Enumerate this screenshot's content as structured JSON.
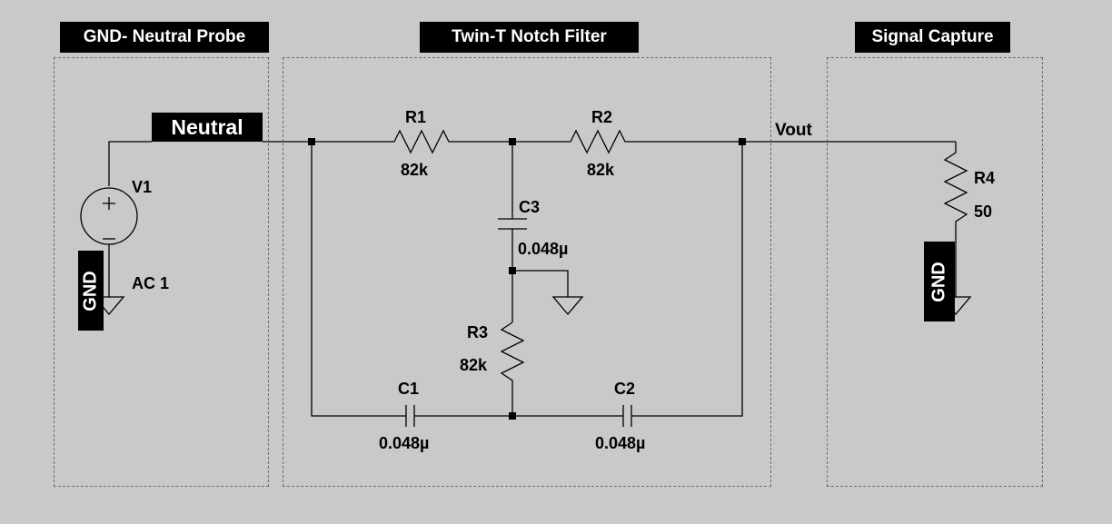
{
  "sections": {
    "probe": "GND- Neutral Probe",
    "filter": "Twin-T Notch Filter",
    "capture": "Signal Capture"
  },
  "nets": {
    "neutral": "Neutral",
    "vout": "Vout",
    "gnd_source": "GND",
    "gnd_load": "GND"
  },
  "components": {
    "v1": {
      "name": "V1",
      "value": "AC 1"
    },
    "r1": {
      "name": "R1",
      "value": "82k"
    },
    "r2": {
      "name": "R2",
      "value": "82k"
    },
    "r3": {
      "name": "R3",
      "value": "82k"
    },
    "r4": {
      "name": "R4",
      "value": "50"
    },
    "c1": {
      "name": "C1",
      "value": "0.048µ"
    },
    "c2": {
      "name": "C2",
      "value": "0.048µ"
    },
    "c3": {
      "name": "C3",
      "value": "0.048µ"
    }
  },
  "colors": {
    "background": "#c9c9c9",
    "wire": "#000000",
    "box_border": "#6f6f6f",
    "label_bg": "#000000",
    "label_fg": "#ffffff"
  }
}
